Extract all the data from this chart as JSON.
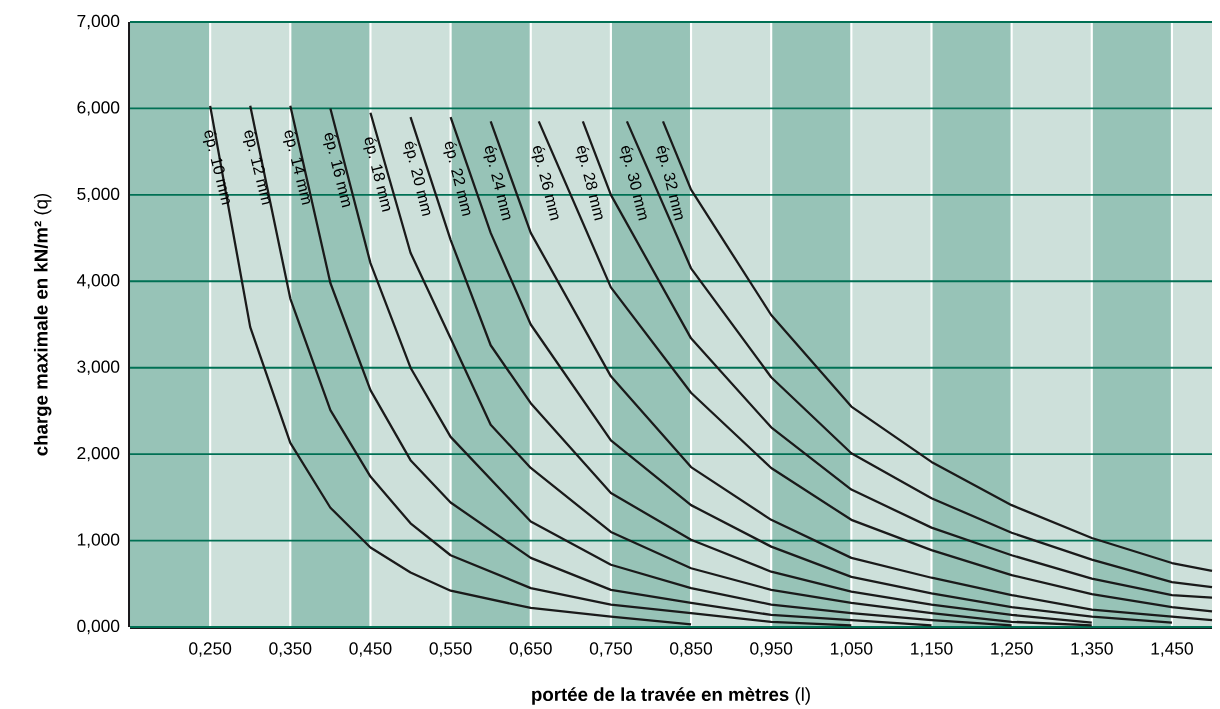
{
  "chart_data": {
    "type": "line",
    "xlabel": "**portée de la travée en mètres** (l)",
    "ylabel": "**charge maximale en kN/m²** (q)",
    "xlim": [
      0.15,
      1.5
    ],
    "ylim": [
      0,
      7
    ],
    "xticks": [
      {
        "value": 0.25,
        "label": "0,250"
      },
      {
        "value": 0.35,
        "label": "0,350"
      },
      {
        "value": 0.45,
        "label": "0,450"
      },
      {
        "value": 0.55,
        "label": "0,550"
      },
      {
        "value": 0.65,
        "label": "0,650"
      },
      {
        "value": 0.75,
        "label": "0,750"
      },
      {
        "value": 0.85,
        "label": "0,850"
      },
      {
        "value": 0.95,
        "label": "0,950"
      },
      {
        "value": 1.05,
        "label": "1,050"
      },
      {
        "value": 1.15,
        "label": "1,150"
      },
      {
        "value": 1.25,
        "label": "1,250"
      },
      {
        "value": 1.35,
        "label": "1,350"
      },
      {
        "value": 1.45,
        "label": "1,450"
      }
    ],
    "yticks": [
      {
        "value": 0,
        "label": "0,000"
      },
      {
        "value": 1,
        "label": "1,000"
      },
      {
        "value": 2,
        "label": "2,000"
      },
      {
        "value": 3,
        "label": "3,000"
      },
      {
        "value": 4,
        "label": "4,000"
      },
      {
        "value": 5,
        "label": "5,000"
      },
      {
        "value": 6,
        "label": "6,000"
      },
      {
        "value": 7,
        "label": "7,000"
      }
    ],
    "grid": true,
    "marker": "none",
    "line_style": "solid",
    "bands": [
      {
        "axis": "x",
        "from": 0.15,
        "to": 0.25,
        "color": "#97c3b7"
      },
      {
        "axis": "x",
        "from": 0.25,
        "to": 0.35,
        "color": "#cde0da"
      },
      {
        "axis": "x",
        "from": 0.35,
        "to": 0.45,
        "color": "#97c3b7"
      },
      {
        "axis": "x",
        "from": 0.45,
        "to": 0.55,
        "color": "#cde0da"
      },
      {
        "axis": "x",
        "from": 0.55,
        "to": 0.65,
        "color": "#97c3b7"
      },
      {
        "axis": "x",
        "from": 0.65,
        "to": 0.75,
        "color": "#cde0da"
      },
      {
        "axis": "x",
        "from": 0.75,
        "to": 0.85,
        "color": "#97c3b7"
      },
      {
        "axis": "x",
        "from": 0.85,
        "to": 0.95,
        "color": "#cde0da"
      },
      {
        "axis": "x",
        "from": 0.95,
        "to": 1.05,
        "color": "#97c3b7"
      },
      {
        "axis": "x",
        "from": 1.05,
        "to": 1.15,
        "color": "#cde0da"
      },
      {
        "axis": "x",
        "from": 1.15,
        "to": 1.25,
        "color": "#97c3b7"
      },
      {
        "axis": "x",
        "from": 1.25,
        "to": 1.35,
        "color": "#cde0da"
      },
      {
        "axis": "x",
        "from": 1.35,
        "to": 1.45,
        "color": "#97c3b7"
      },
      {
        "axis": "x",
        "from": 1.45,
        "to": 1.5,
        "color": "#cde0da"
      }
    ],
    "series": [
      {
        "name": "ép. 10 mm",
        "color": "#1a1a1a",
        "x": [
          0.25,
          0.3,
          0.35,
          0.4,
          0.45,
          0.5,
          0.55,
          0.65,
          0.75,
          0.85
        ],
        "values": [
          6.03,
          3.47,
          2.13,
          1.38,
          0.92,
          0.63,
          0.42,
          0.22,
          0.12,
          0.03
        ]
      },
      {
        "name": "ép. 12 mm",
        "color": "#1a1a1a",
        "x": [
          0.3,
          0.35,
          0.4,
          0.45,
          0.5,
          0.55,
          0.65,
          0.75,
          0.85,
          0.95,
          1.05
        ],
        "values": [
          6.03,
          3.8,
          2.51,
          1.74,
          1.2,
          0.83,
          0.45,
          0.26,
          0.16,
          0.06,
          0.02
        ]
      },
      {
        "name": "ép. 14 mm",
        "color": "#1a1a1a",
        "x": [
          0.35,
          0.4,
          0.45,
          0.5,
          0.55,
          0.65,
          0.75,
          0.85,
          0.95,
          1.05,
          1.15
        ],
        "values": [
          6.03,
          3.98,
          2.74,
          1.93,
          1.44,
          0.8,
          0.43,
          0.28,
          0.14,
          0.08,
          0.02
        ]
      },
      {
        "name": "ép. 16 mm",
        "color": "#1a1a1a",
        "x": [
          0.4,
          0.45,
          0.5,
          0.55,
          0.65,
          0.75,
          0.85,
          0.95,
          1.05,
          1.15,
          1.25
        ],
        "values": [
          6.0,
          4.21,
          3.0,
          2.2,
          1.22,
          0.72,
          0.45,
          0.26,
          0.16,
          0.08,
          0.02
        ]
      },
      {
        "name": "ép. 18 mm",
        "color": "#1a1a1a",
        "x": [
          0.45,
          0.5,
          0.55,
          0.6,
          0.65,
          0.75,
          0.85,
          0.95,
          1.05,
          1.15,
          1.25,
          1.35
        ],
        "values": [
          5.95,
          4.33,
          3.34,
          2.34,
          1.84,
          1.1,
          0.68,
          0.43,
          0.28,
          0.16,
          0.06,
          0.02
        ]
      },
      {
        "name": "ép. 20 mm",
        "color": "#1a1a1a",
        "x": [
          0.5,
          0.55,
          0.6,
          0.65,
          0.75,
          0.85,
          0.95,
          1.05,
          1.15,
          1.25,
          1.35
        ],
        "values": [
          5.9,
          4.48,
          3.26,
          2.59,
          1.55,
          1.01,
          0.64,
          0.41,
          0.26,
          0.14,
          0.05
        ]
      },
      {
        "name": "ép. 22 mm",
        "color": "#1a1a1a",
        "x": [
          0.55,
          0.6,
          0.65,
          0.75,
          0.85,
          0.95,
          1.05,
          1.15,
          1.25,
          1.35,
          1.45
        ],
        "values": [
          5.9,
          4.56,
          3.5,
          2.16,
          1.41,
          0.93,
          0.58,
          0.39,
          0.23,
          0.12,
          0.05
        ]
      },
      {
        "name": "ép. 24 mm",
        "color": "#1a1a1a",
        "x": [
          0.6,
          0.65,
          0.75,
          0.85,
          0.95,
          1.05,
          1.15,
          1.25,
          1.35,
          1.45,
          1.5
        ],
        "values": [
          5.85,
          4.56,
          2.9,
          1.85,
          1.24,
          0.8,
          0.57,
          0.37,
          0.2,
          0.12,
          0.08
        ]
      },
      {
        "name": "ép. 26 mm",
        "color": "#1a1a1a",
        "x": [
          0.66,
          0.75,
          0.85,
          0.95,
          1.05,
          1.15,
          1.25,
          1.35,
          1.45,
          1.5
        ],
        "values": [
          5.85,
          3.93,
          2.71,
          1.84,
          1.24,
          0.89,
          0.6,
          0.38,
          0.23,
          0.18
        ]
      },
      {
        "name": "ép. 28 mm",
        "color": "#1a1a1a",
        "x": [
          0.715,
          0.75,
          0.85,
          0.95,
          1.05,
          1.15,
          1.25,
          1.35,
          1.45,
          1.5
        ],
        "values": [
          5.85,
          5.0,
          3.34,
          2.31,
          1.59,
          1.15,
          0.83,
          0.56,
          0.37,
          0.34
        ]
      },
      {
        "name": "ép. 30 mm",
        "color": "#1a1a1a",
        "x": [
          0.77,
          0.85,
          0.95,
          1.05,
          1.15,
          1.25,
          1.35,
          1.45,
          1.5
        ],
        "values": [
          5.85,
          4.15,
          2.89,
          2.01,
          1.49,
          1.09,
          0.78,
          0.52,
          0.46
        ]
      },
      {
        "name": "ép. 32 mm",
        "color": "#1a1a1a",
        "x": [
          0.815,
          0.85,
          0.95,
          1.05,
          1.15,
          1.25,
          1.35,
          1.45,
          1.5
        ],
        "values": [
          5.85,
          5.06,
          3.61,
          2.55,
          1.91,
          1.41,
          1.03,
          0.74,
          0.65
        ]
      }
    ]
  }
}
